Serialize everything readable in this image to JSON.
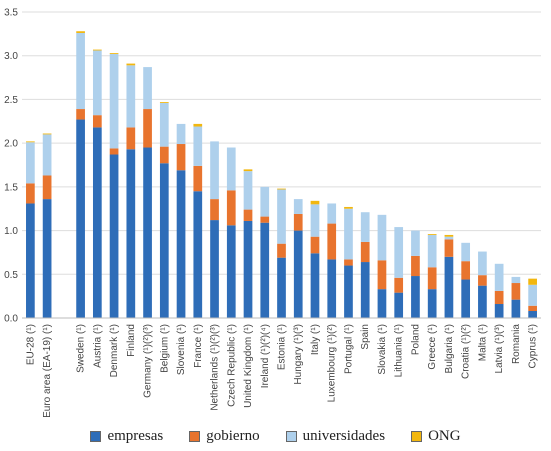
{
  "chart_data": {
    "type": "bar",
    "stacked": true,
    "title": "",
    "xlabel": "",
    "ylabel": "",
    "ylim": [
      0,
      3.5
    ],
    "yticks": [
      "0.0",
      "0.5",
      "1.0",
      "1.5",
      "2.0",
      "2.5",
      "3.0",
      "3.5"
    ],
    "grid": true,
    "legend_position": "bottom",
    "categories": [
      "EU-28 (¹)",
      "Euro area (EA-19) (¹)",
      "",
      "Sweden (¹)",
      "Austria (¹)",
      "Denmark (¹)",
      "Finland",
      "Germany (¹)(²)(³)",
      "Belgium (¹)",
      "Slovenia (¹)",
      "France (¹)",
      "Netherlands (¹)(²)(³)",
      "Czech Republic (¹)",
      "United Kingdom (¹)",
      "Ireland (¹)(²)(⁴)",
      "Estonia (¹)",
      "Hungary (¹)(³)",
      "Italy (¹)",
      "Luxembourg (¹)(²)",
      "Portugal (¹)",
      "Spain",
      "Slovakia (¹)",
      "Lithuania (¹)",
      "Poland",
      "Greece (¹)",
      "Bulgaria (¹)",
      "Croatia (¹)(²)",
      "Malta (¹)",
      "Latvia (¹)(³)",
      "Romania",
      "Cyprus (¹)"
    ],
    "series": [
      {
        "name": "empresas",
        "color": "#2e6db8",
        "values": [
          1.31,
          1.36,
          0,
          2.27,
          2.18,
          1.87,
          1.93,
          1.95,
          1.77,
          1.69,
          1.45,
          1.12,
          1.06,
          1.11,
          1.09,
          0.69,
          1.0,
          0.74,
          0.67,
          0.6,
          0.64,
          0.33,
          0.29,
          0.48,
          0.33,
          0.7,
          0.44,
          0.37,
          0.16,
          0.21,
          0.08
        ]
      },
      {
        "name": "gobierno",
        "color": "#e8742e",
        "values": [
          0.23,
          0.27,
          0,
          0.12,
          0.14,
          0.07,
          0.25,
          0.44,
          0.19,
          0.3,
          0.29,
          0.24,
          0.4,
          0.13,
          0.07,
          0.16,
          0.19,
          0.19,
          0.41,
          0.07,
          0.23,
          0.33,
          0.17,
          0.23,
          0.25,
          0.2,
          0.21,
          0.12,
          0.15,
          0.19,
          0.06
        ]
      },
      {
        "name": "universidades",
        "color": "#aed0ec",
        "values": [
          0.47,
          0.47,
          0,
          0.87,
          0.74,
          1.08,
          0.71,
          0.48,
          0.5,
          0.23,
          0.45,
          0.66,
          0.49,
          0.44,
          0.34,
          0.62,
          0.17,
          0.37,
          0.23,
          0.58,
          0.34,
          0.52,
          0.58,
          0.29,
          0.37,
          0.03,
          0.21,
          0.27,
          0.31,
          0.07,
          0.24
        ]
      },
      {
        "name": "ONG",
        "color": "#f2b70f",
        "values": [
          0.01,
          0.01,
          0,
          0.02,
          0.01,
          0.01,
          0.02,
          0.0,
          0.01,
          0.0,
          0.03,
          0.0,
          0.0,
          0.02,
          0.0,
          0.01,
          0.0,
          0.04,
          0.0,
          0.02,
          0.0,
          0.0,
          0.0,
          0.0,
          0.01,
          0.02,
          0.0,
          0.0,
          0.0,
          0.0,
          0.07
        ]
      }
    ]
  }
}
